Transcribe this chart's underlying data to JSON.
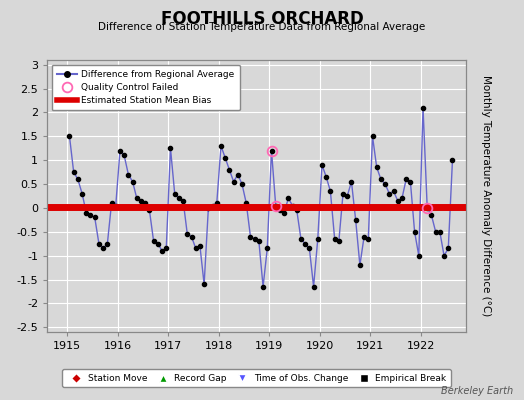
{
  "title": "FOOTHILLS ORCHARD",
  "subtitle": "Difference of Station Temperature Data from Regional Average",
  "ylabel_right": "Monthly Temperature Anomaly Difference (°C)",
  "ylim": [
    -2.6,
    3.1
  ],
  "yticks": [
    -2.5,
    -2,
    -1.5,
    -1,
    -0.5,
    0,
    0.5,
    1,
    1.5,
    2,
    2.5,
    3
  ],
  "ytick_labels": [
    "-2.5",
    "-2",
    "-1.5",
    "-1",
    "-0.5",
    "0",
    "0.5",
    "1",
    "1.5",
    "2",
    "2.5",
    "3"
  ],
  "xlim": [
    1914.6,
    1922.9
  ],
  "xticks": [
    1915,
    1916,
    1917,
    1918,
    1919,
    1920,
    1921,
    1922
  ],
  "bias_y": 0.02,
  "background_color": "#d8d8d8",
  "plot_bg_color": "#d8d8d8",
  "line_color": "#6666cc",
  "marker_color": "#000000",
  "bias_color": "#dd0000",
  "qc_color": "#ff69b4",
  "watermark": "Berkeley Earth",
  "times": [
    1915.042,
    1915.125,
    1915.208,
    1915.292,
    1915.375,
    1915.458,
    1915.542,
    1915.625,
    1915.708,
    1915.792,
    1915.875,
    1915.958,
    1916.042,
    1916.125,
    1916.208,
    1916.292,
    1916.375,
    1916.458,
    1916.542,
    1916.625,
    1916.708,
    1916.792,
    1916.875,
    1916.958,
    1917.042,
    1917.125,
    1917.208,
    1917.292,
    1917.375,
    1917.458,
    1917.542,
    1917.625,
    1917.708,
    1917.792,
    1917.875,
    1917.958,
    1918.042,
    1918.125,
    1918.208,
    1918.292,
    1918.375,
    1918.458,
    1918.542,
    1918.625,
    1918.708,
    1918.792,
    1918.875,
    1918.958,
    1919.042,
    1919.125,
    1919.208,
    1919.292,
    1919.375,
    1919.458,
    1919.542,
    1919.625,
    1919.708,
    1919.792,
    1919.875,
    1919.958,
    1920.042,
    1920.125,
    1920.208,
    1920.292,
    1920.375,
    1920.458,
    1920.542,
    1920.625,
    1920.708,
    1920.792,
    1920.875,
    1920.958,
    1921.042,
    1921.125,
    1921.208,
    1921.292,
    1921.375,
    1921.458,
    1921.542,
    1921.625,
    1921.708,
    1921.792,
    1921.875,
    1921.958,
    1922.042,
    1922.125,
    1922.208,
    1922.292,
    1922.375,
    1922.458,
    1922.542,
    1922.625
  ],
  "values": [
    1.5,
    0.75,
    0.6,
    0.3,
    -0.1,
    -0.15,
    -0.2,
    -0.75,
    -0.85,
    -0.75,
    0.1,
    0.05,
    1.2,
    1.1,
    0.7,
    0.55,
    0.2,
    0.15,
    0.1,
    -0.05,
    -0.7,
    -0.75,
    -0.9,
    -0.85,
    1.25,
    0.3,
    0.2,
    0.15,
    -0.55,
    -0.6,
    -0.85,
    -0.8,
    -1.6,
    0.0,
    0.05,
    0.1,
    1.3,
    1.05,
    0.8,
    0.55,
    0.7,
    0.5,
    0.1,
    -0.6,
    -0.65,
    -0.7,
    -1.65,
    -0.85,
    1.2,
    0.05,
    -0.05,
    -0.1,
    0.2,
    0.05,
    -0.05,
    -0.65,
    -0.75,
    -0.85,
    -1.65,
    -0.65,
    0.9,
    0.65,
    0.35,
    -0.65,
    -0.7,
    0.3,
    0.25,
    0.55,
    -0.25,
    -1.2,
    -0.6,
    -0.65,
    1.5,
    0.85,
    0.6,
    0.5,
    0.3,
    0.35,
    0.15,
    0.2,
    0.6,
    0.55,
    -0.5,
    -1.0,
    2.1,
    0.0,
    -0.15,
    -0.5,
    -0.5,
    -1.0,
    -0.85,
    1.0
  ],
  "qc_failed_indices": [
    48,
    49,
    85
  ],
  "bottom_legend": [
    {
      "label": "Station Move",
      "marker": "D",
      "color": "#cc0000"
    },
    {
      "label": "Record Gap",
      "marker": "^",
      "color": "#009900"
    },
    {
      "label": "Time of Obs. Change",
      "marker": "v",
      "color": "#5555ff"
    },
    {
      "label": "Empirical Break",
      "marker": "s",
      "color": "#000000"
    }
  ]
}
